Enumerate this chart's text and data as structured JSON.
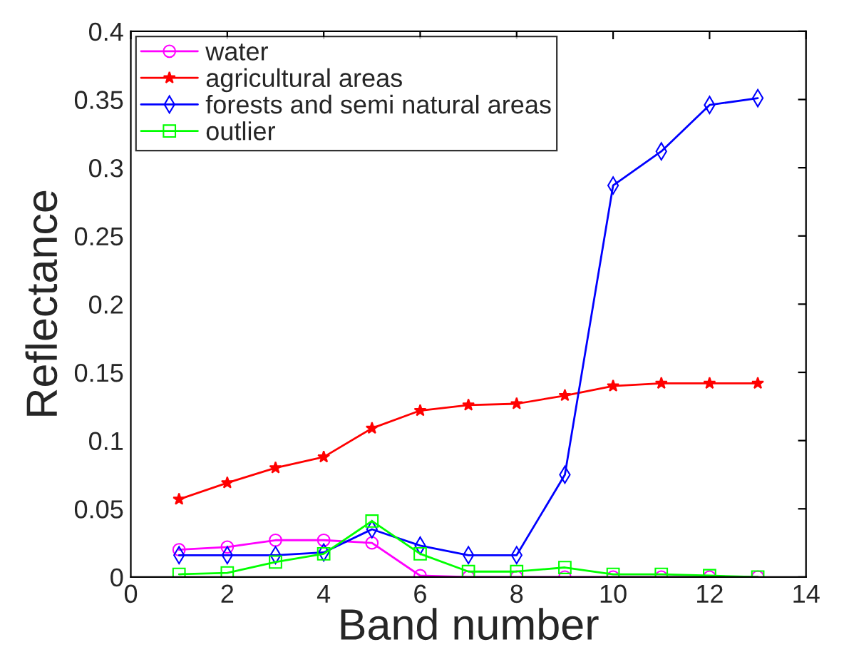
{
  "chart_data": {
    "type": "line",
    "xlabel": "Band number",
    "ylabel": "Reflectance",
    "x": [
      1,
      2,
      3,
      4,
      5,
      6,
      7,
      8,
      9,
      10,
      11,
      12,
      13
    ],
    "series": [
      {
        "name": "water",
        "color": "#ff00ff",
        "marker": "circle",
        "values": [
          0.02,
          0.022,
          0.027,
          0.027,
          0.025,
          0.001,
          0,
          0,
          0,
          0,
          0,
          0,
          0
        ]
      },
      {
        "name": "agricultural areas",
        "color": "#ff0000",
        "marker": "star",
        "values": [
          0.057,
          0.069,
          0.08,
          0.088,
          0.109,
          0.122,
          0.126,
          0.127,
          0.133,
          0.14,
          0.142,
          0.142,
          0.142
        ]
      },
      {
        "name": "forests and semi natural areas",
        "color": "#0000ff",
        "marker": "diamond",
        "values": [
          0.016,
          0.016,
          0.016,
          0.018,
          0.035,
          0.023,
          0.016,
          0.016,
          0.075,
          0.287,
          0.312,
          0.346,
          0.351
        ]
      },
      {
        "name": "outlier",
        "color": "#00ff00",
        "marker": "square",
        "values": [
          0.002,
          0.003,
          0.011,
          0.017,
          0.041,
          0.017,
          0.004,
          0.004,
          0.007,
          0.002,
          0.002,
          0.001,
          0
        ]
      }
    ],
    "xlim": [
      0,
      14
    ],
    "xticks": [
      0,
      2,
      4,
      6,
      8,
      10,
      12,
      14
    ],
    "ylim": [
      0,
      0.4
    ],
    "yticks": [
      0,
      0.05,
      0.1,
      0.15,
      0.2,
      0.25,
      0.3,
      0.35,
      0.4
    ],
    "grid": false,
    "legend": "top left",
    "line_style": "solid"
  }
}
